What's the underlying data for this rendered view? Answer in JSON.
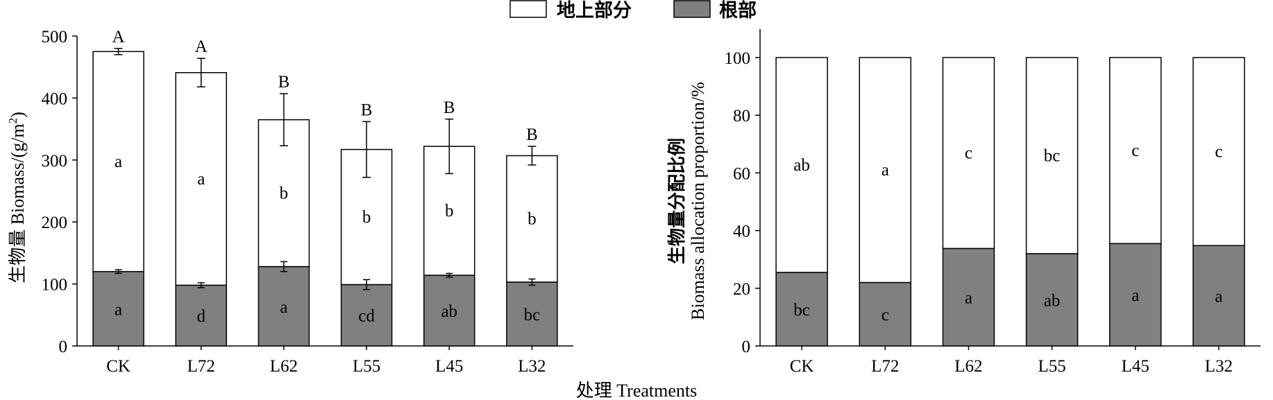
{
  "legend": {
    "aboveground": "地上部分",
    "root": "根部"
  },
  "xlabel": "处理 Treatments",
  "colors": {
    "aboveground": "#ffffff",
    "root": "#808080",
    "stroke": "#000000"
  },
  "chart_data": [
    {
      "type": "bar",
      "stacked": true,
      "ylabel_main": "生物量 Biomass/(g/m",
      "ylabel_sup": "2",
      "ylabel_end": ")",
      "ylim": [
        0,
        500
      ],
      "yticks": [
        0,
        100,
        200,
        300,
        400,
        500
      ],
      "categories": [
        "CK",
        "L72",
        "L62",
        "L55",
        "L45",
        "L32"
      ],
      "total": [
        475,
        441,
        365,
        317,
        322,
        307
      ],
      "total_err": [
        5,
        23,
        42,
        45,
        44,
        15
      ],
      "total_letters": [
        "A",
        "A",
        "B",
        "B",
        "B",
        "B"
      ],
      "series": [
        {
          "name": "根部",
          "values": [
            120,
            98,
            128,
            99,
            114,
            103
          ],
          "err": [
            3,
            4,
            8,
            8,
            3,
            5
          ],
          "letters": [
            "a",
            "d",
            "a",
            "cd",
            "ab",
            "bc"
          ]
        },
        {
          "name": "地上部分",
          "values": [
            355,
            343,
            237,
            218,
            208,
            204
          ],
          "letters": [
            "a",
            "a",
            "b",
            "b",
            "b",
            "b"
          ]
        }
      ]
    },
    {
      "type": "bar",
      "stacked": true,
      "ylabel_cn": "生物量分配比例",
      "ylabel_en": "Biomass allocation proportion/%",
      "ylim": [
        0,
        100
      ],
      "yticks": [
        0,
        20,
        40,
        60,
        80,
        100
      ],
      "categories": [
        "CK",
        "L72",
        "L62",
        "L55",
        "L45",
        "L32"
      ],
      "series": [
        {
          "name": "根部",
          "values": [
            25.5,
            22,
            33.8,
            32,
            35.5,
            34.8
          ],
          "letters": [
            "bc",
            "c",
            "a",
            "ab",
            "a",
            "a"
          ]
        },
        {
          "name": "地上部分",
          "values": [
            74.5,
            78,
            66.2,
            68,
            64.5,
            65.2
          ],
          "letters": [
            "ab",
            "a",
            "c",
            "bc",
            "c",
            "c"
          ]
        }
      ]
    }
  ]
}
